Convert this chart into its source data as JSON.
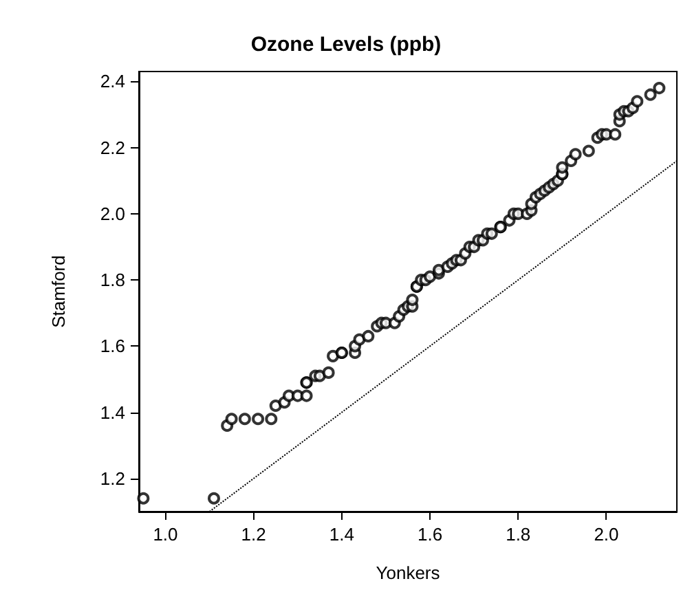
{
  "chart_data": {
    "type": "scatter",
    "title": "Ozone Levels (ppb)",
    "xlabel": "Yonkers",
    "ylabel": "Stamford",
    "xlim": [
      0.94,
      2.16
    ],
    "ylim": [
      1.1,
      2.43
    ],
    "xticks": [
      {
        "value": 1,
        "label": "1.0"
      },
      1.2,
      1.4,
      1.6,
      1.8,
      {
        "value": 2,
        "label": "2.0"
      }
    ],
    "yticks": [
      1.2,
      1.4,
      1.6,
      1.8,
      {
        "value": 2,
        "label": "2.0"
      },
      2.2,
      2.4
    ],
    "grid": false,
    "series": [
      {
        "marker": "circle",
        "color": "#000000",
        "x": [
          0.95,
          1.11,
          1.14,
          1.15,
          1.18,
          1.21,
          1.24,
          1.25,
          1.27,
          1.28,
          1.3,
          1.32,
          1.32,
          1.32,
          1.34,
          1.35,
          1.37,
          1.38,
          1.4,
          1.4,
          1.43,
          1.43,
          1.44,
          1.46,
          1.48,
          1.49,
          1.5,
          1.52,
          1.53,
          1.54,
          1.55,
          1.56,
          1.56,
          1.57,
          1.57,
          1.58,
          1.59,
          1.6,
          1.62,
          1.62,
          1.64,
          1.65,
          1.66,
          1.67,
          1.68,
          1.69,
          1.7,
          1.71,
          1.72,
          1.73,
          1.74,
          1.76,
          1.76,
          1.78,
          1.79,
          1.8,
          1.82,
          1.83,
          1.83,
          1.84,
          1.85,
          1.86,
          1.87,
          1.88,
          1.89,
          1.9,
          1.9,
          1.9,
          1.92,
          1.93,
          1.96,
          1.98,
          1.99,
          2.0,
          2.02,
          2.03,
          2.03,
          2.04,
          2.05,
          2.06,
          2.07,
          2.1,
          2.12
        ],
        "values": [
          1.14,
          1.14,
          1.36,
          1.38,
          1.38,
          1.38,
          1.38,
          1.42,
          1.43,
          1.45,
          1.45,
          1.45,
          1.49,
          1.49,
          1.51,
          1.51,
          1.52,
          1.57,
          1.58,
          1.58,
          1.58,
          1.6,
          1.62,
          1.63,
          1.66,
          1.67,
          1.67,
          1.67,
          1.69,
          1.71,
          1.72,
          1.72,
          1.74,
          1.78,
          1.78,
          1.8,
          1.8,
          1.81,
          1.82,
          1.83,
          1.84,
          1.85,
          1.86,
          1.86,
          1.88,
          1.9,
          1.9,
          1.92,
          1.92,
          1.94,
          1.94,
          1.96,
          1.96,
          1.98,
          2.0,
          2.0,
          2.0,
          2.01,
          2.03,
          2.05,
          2.06,
          2.07,
          2.08,
          2.09,
          2.1,
          2.12,
          2.12,
          2.14,
          2.16,
          2.18,
          2.19,
          2.23,
          2.24,
          2.24,
          2.24,
          2.28,
          2.3,
          2.31,
          2.31,
          2.32,
          2.34,
          2.36,
          2.38
        ]
      },
      {
        "type": "line",
        "line_style": "dotted",
        "marker": "none",
        "color": "#000000",
        "x": [
          1.1,
          2.16
        ],
        "values": [
          1.1,
          2.16
        ]
      }
    ]
  }
}
